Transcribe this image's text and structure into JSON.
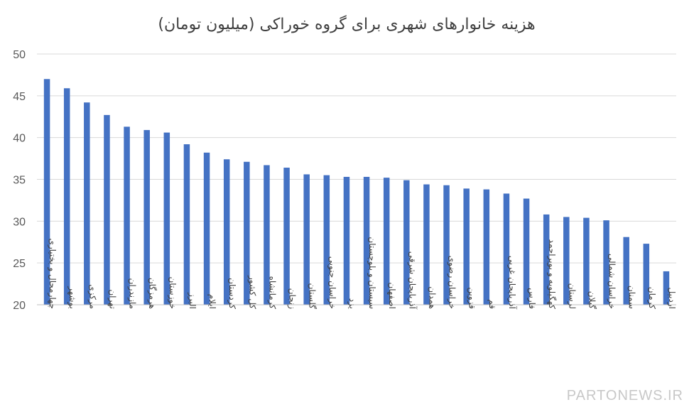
{
  "chart_data": {
    "type": "bar",
    "title": "هزینه خانوارهای شهری برای گروه خوراکی  (میلیون تومان)",
    "xlabel": "",
    "ylabel": "",
    "ylim": [
      20,
      50
    ],
    "yticks": [
      20,
      25,
      30,
      35,
      40,
      45,
      50
    ],
    "grid": true,
    "legend": "none",
    "bar_color": "#4472c4",
    "categories": [
      "چهارمحال و بختیاری",
      "بوشهر",
      "مرکزی",
      "تهران",
      "مازندران",
      "هرمزگان",
      "خوزستان",
      "البرز",
      "ایلام",
      "کردستان",
      "کل کشور",
      "کرمانشاه",
      "زنجان",
      "گلستان",
      "خراسان جنوبی",
      "یزد",
      "سیستان و بلوچستان",
      "اصفهان",
      "آذربایجان شرقی",
      "همدان",
      "خراسان رضوی",
      "قزوین",
      "قم",
      "آذربایجان غربی",
      "فارس",
      "کهگیلویه و بویراحمد",
      "لرستان",
      "گیلان",
      "خراسان شمالی",
      "سمنان",
      "کرمان",
      "اردبیل"
    ],
    "values": [
      47.0,
      45.9,
      44.2,
      42.7,
      41.3,
      40.9,
      40.6,
      39.2,
      38.2,
      37.4,
      37.1,
      36.7,
      36.4,
      35.6,
      35.5,
      35.3,
      35.3,
      35.2,
      34.9,
      34.4,
      34.3,
      33.9,
      33.8,
      33.3,
      32.7,
      30.8,
      30.5,
      30.4,
      30.1,
      28.1,
      27.3,
      24.0
    ]
  },
  "watermark": "PARTONEWS.IR"
}
